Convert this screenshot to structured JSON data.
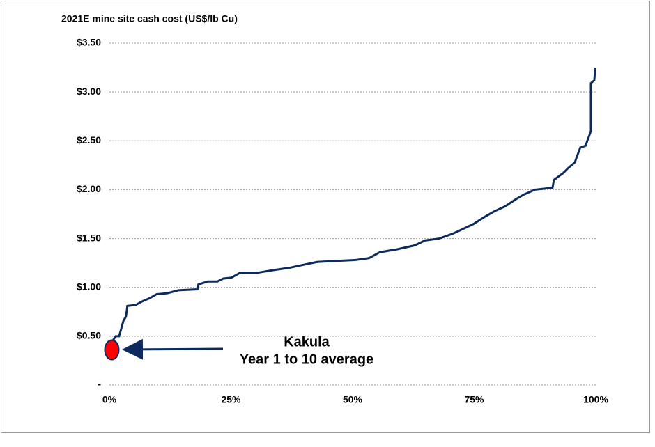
{
  "chart_data": {
    "type": "line",
    "title": "2021E mine site cash cost (US$/lb Cu)",
    "x": [
      0.4,
      0.9,
      1.3,
      2.0,
      2.9,
      3.4,
      3.7,
      5.4,
      6.9,
      8.3,
      9.7,
      11.9,
      14.2,
      18.1,
      18.3,
      20.2,
      22.2,
      23.4,
      25.1,
      26.9,
      30.5,
      34.1,
      37,
      39.8,
      42.7,
      46.3,
      50.6,
      53.4,
      55.6,
      59.2,
      62.8,
      64.9,
      67.8,
      70.6,
      72.8,
      74.9,
      77.1,
      79.2,
      81.4,
      83.5,
      85.2,
      87.5,
      91.1,
      91.4,
      93.3,
      94.3,
      95.7,
      96.8,
      97.9,
      99.0,
      99.0,
      99.7,
      99.9
    ],
    "series": [
      {
        "color": "#0d2a5e",
        "values": [
          0.43,
          0.47,
          0.5,
          0.5,
          0.66,
          0.7,
          0.81,
          0.82,
          0.86,
          0.89,
          0.93,
          0.94,
          0.97,
          0.98,
          1.03,
          1.06,
          1.06,
          1.09,
          1.1,
          1.15,
          1.15,
          1.18,
          1.2,
          1.23,
          1.26,
          1.27,
          1.28,
          1.3,
          1.36,
          1.39,
          1.43,
          1.48,
          1.5,
          1.55,
          1.6,
          1.65,
          1.72,
          1.78,
          1.83,
          1.9,
          1.95,
          2.0,
          2.02,
          2.1,
          2.17,
          2.22,
          2.28,
          2.43,
          2.45,
          2.6,
          3.09,
          3.12,
          3.25
        ]
      }
    ],
    "xlim": [
      0,
      100
    ],
    "xticks": [
      {
        "value": 0,
        "label": "0%"
      },
      {
        "value": 25,
        "label": "25%"
      },
      {
        "value": 50,
        "label": "50%"
      },
      {
        "value": 75,
        "label": "75%"
      },
      {
        "value": 100,
        "label": "100%"
      }
    ],
    "ylim": [
      0,
      3.5
    ],
    "yticks": [
      {
        "value": 0,
        "label": "-"
      },
      {
        "value": 0.5,
        "label": "$0.50"
      },
      {
        "value": 1,
        "label": "$1.00"
      },
      {
        "value": 1.5,
        "label": "$1.50"
      },
      {
        "value": 2,
        "label": "$2.00"
      },
      {
        "value": 2.5,
        "label": "$2.50"
      },
      {
        "value": 3,
        "label": "$3.00"
      },
      {
        "value": 3.5,
        "label": "$3.50"
      }
    ],
    "grid": true,
    "annotation": {
      "lines": [
        "Kakula",
        "Year 1 to 10 average"
      ],
      "x": 0.5,
      "y": 0.36,
      "color": "#ff0000"
    }
  }
}
